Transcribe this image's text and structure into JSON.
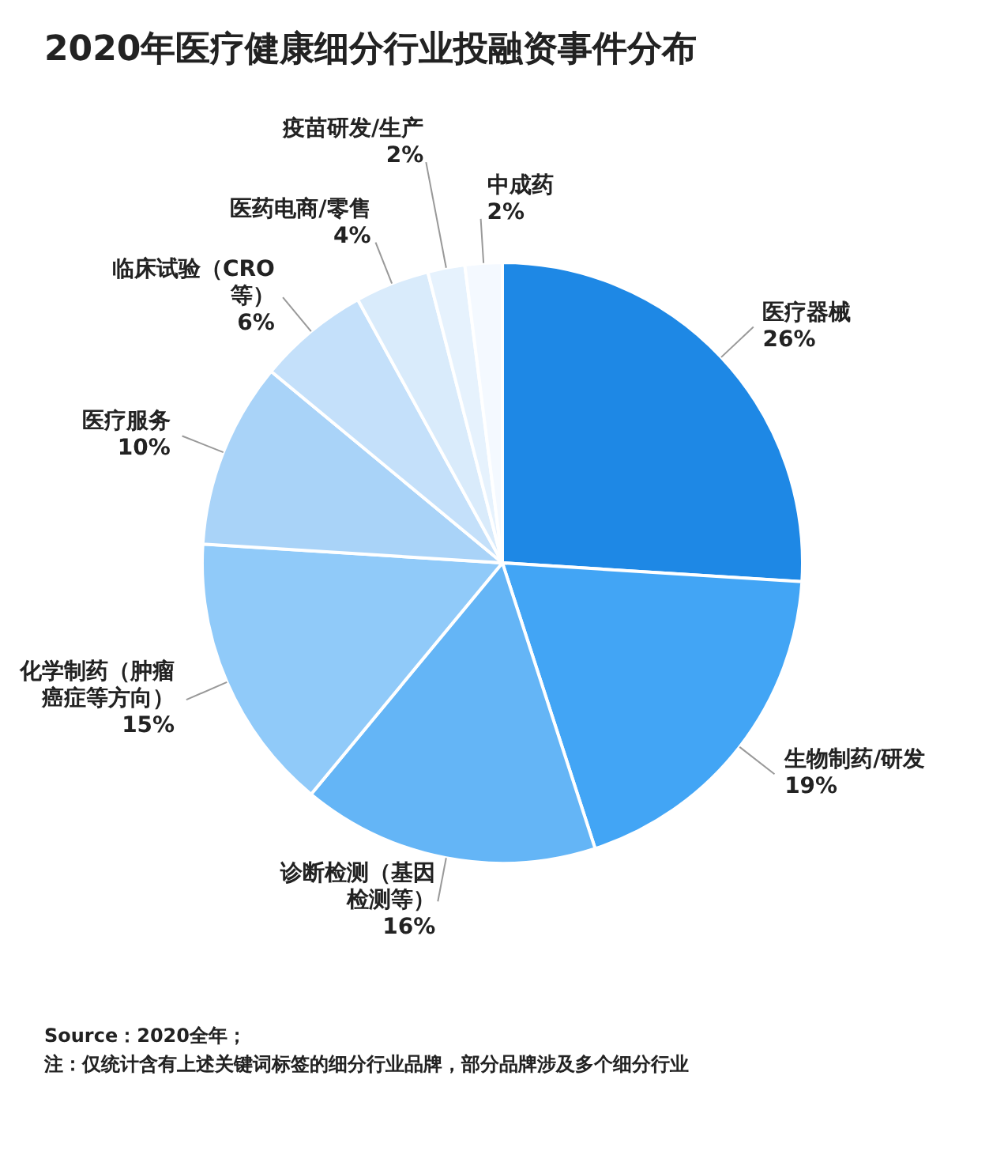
{
  "chart_data": {
    "type": "pie",
    "title": "2020年医疗健康细分行业投融资事件分布",
    "categories": [
      "医疗器械",
      "生物制药/研发",
      "诊断检测（基因检测等）",
      "化学制药（肿瘤癌症等方向）",
      "医疗服务",
      "临床试验（CRO等）",
      "医药电商/零售",
      "疫苗研发/生产",
      "中成药"
    ],
    "values": [
      26,
      19,
      16,
      15,
      10,
      6,
      4,
      2,
      2
    ],
    "value_labels": [
      "26%",
      "19%",
      "16%",
      "15%",
      "10%",
      "6%",
      "4%",
      "2%",
      "2%"
    ],
    "colors": [
      "#1e88e5",
      "#42a5f5",
      "#64b5f6",
      "#90caf9",
      "#a9d3f8",
      "#c4e0fa",
      "#d9ebfb",
      "#e6f2fd",
      "#f4f9ff"
    ],
    "legend": false,
    "annotations": [
      "Source：2020全年；",
      "注：仅统计含有上述关键词标签的细分行业品牌，部分品牌涉及多个细分行业"
    ]
  }
}
